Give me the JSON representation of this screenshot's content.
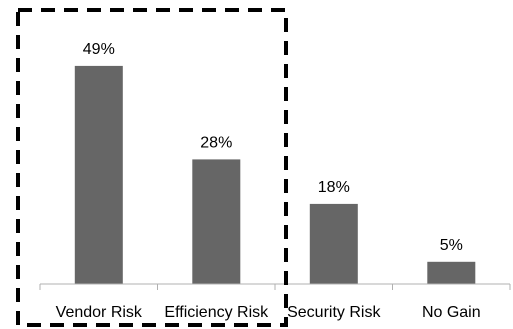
{
  "chart_data": {
    "type": "bar",
    "categories": [
      "Vendor Risk",
      "Efficiency Risk",
      "Security Risk",
      "No Gain"
    ],
    "values": [
      49,
      28,
      18,
      5
    ],
    "data_labels": [
      "49%",
      "28%",
      "18%",
      "5%"
    ],
    "title": "",
    "xlabel": "",
    "ylabel": "",
    "ylim": [
      0,
      55
    ],
    "grid": false,
    "legend": "none",
    "bar_color": "#666666",
    "highlight": {
      "style": "dashed-box",
      "categories": [
        "Vendor Risk",
        "Efficiency Risk"
      ],
      "color": "#000000"
    }
  }
}
